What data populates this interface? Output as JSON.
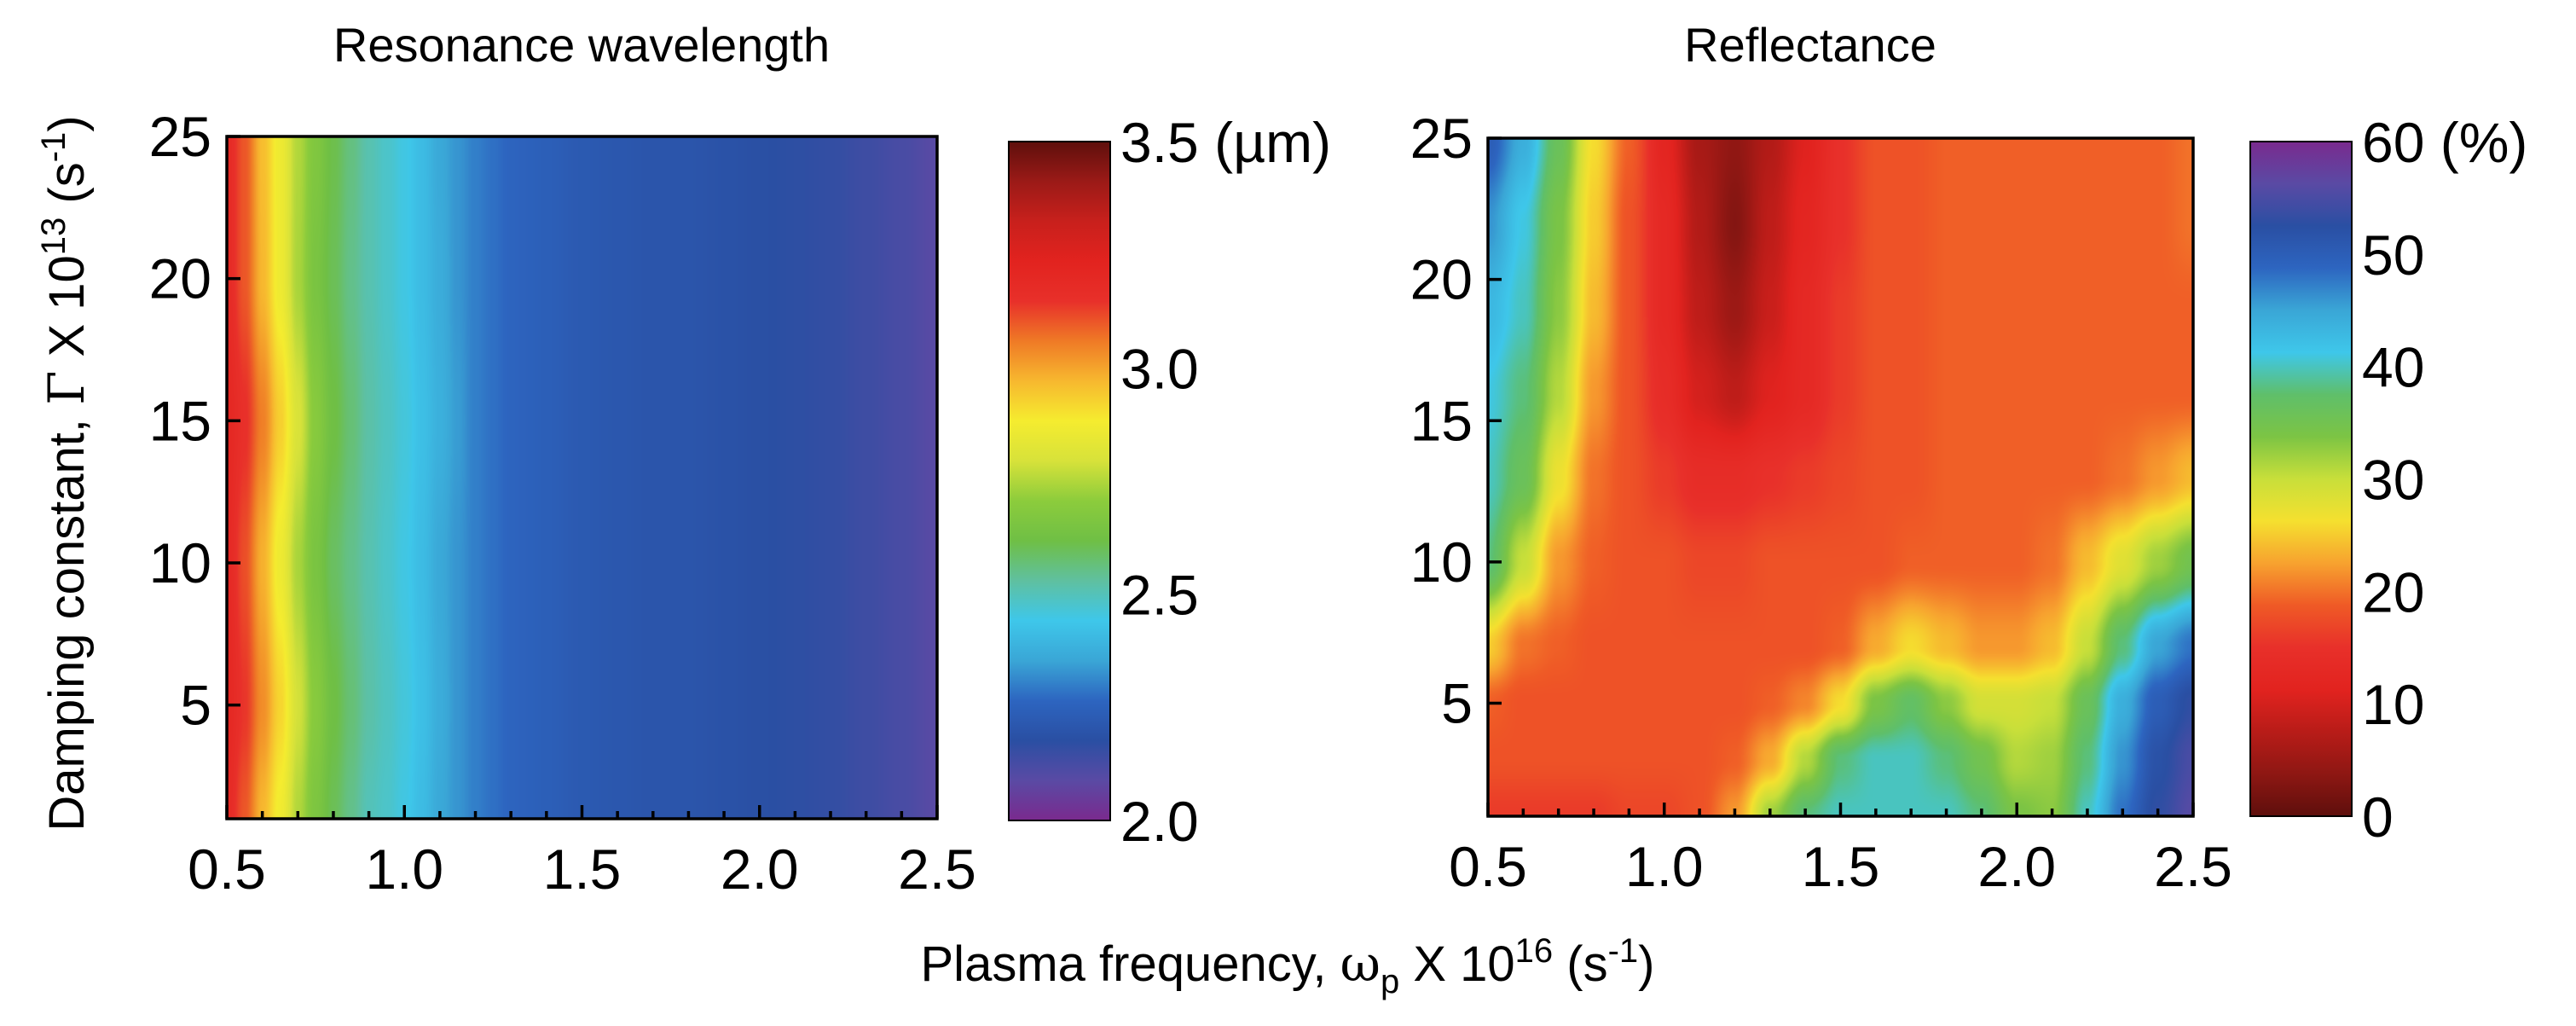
{
  "figure": {
    "xlabel": {
      "prefix": "Plasma frequency, ",
      "symbol": "ω",
      "subscript": "p",
      "middle": " X 10",
      "exponent": "16",
      "unit_open": " (s",
      "unit_exponent": "-1",
      "unit_close": ")"
    },
    "ylabel": {
      "prefix": "Damping constant, ",
      "symbol": "Γ",
      "middle": " X 10",
      "exponent": "13",
      "unit_open": " (s",
      "unit_exponent": "-1",
      "unit_close": ")"
    }
  },
  "chart_data": [
    {
      "type": "heatmap",
      "title": "Resonance wavelength",
      "x_ticks": [
        "0.5",
        "1.0",
        "1.5",
        "2.0",
        "2.5"
      ],
      "y_ticks": [
        "25",
        "20",
        "15",
        "10",
        "5"
      ],
      "xlim": [
        0.5,
        2.5
      ],
      "ylim": [
        1,
        25
      ],
      "colorbar": {
        "range": [
          2.0,
          3.5
        ],
        "ticks": [
          "3.5",
          "3.0",
          "2.5",
          "2.0"
        ],
        "unit": " (µm)",
        "colors": [
          "#7a2a8e",
          "#5a4aa4",
          "#2a4fa3",
          "#2d65c0",
          "#3aa6d6",
          "#3ec7ea",
          "#5fc0a0",
          "#6fbf45",
          "#8ccc3c",
          "#d7e23a",
          "#f5ec2f",
          "#f7b82f",
          "#ef7a26",
          "#e8302a",
          "#e2231f",
          "#c8201c",
          "#9b1a17",
          "#5e0f0c"
        ]
      },
      "samples": {
        "x": [
          0.5,
          0.55,
          0.6,
          0.65,
          0.7,
          0.75,
          0.8,
          0.85,
          0.9,
          0.95,
          1.0,
          1.05,
          1.1,
          1.15,
          1.2,
          1.25,
          1.3,
          1.35,
          1.4,
          1.5,
          1.6,
          1.7,
          1.8,
          1.9,
          2.0,
          2.1,
          2.2,
          2.3,
          2.4,
          2.5
        ],
        "y": [
          1,
          5,
          10,
          15,
          20,
          25
        ],
        "values": [
          [
            3.18,
            3.1,
            2.97,
            2.87,
            2.75,
            2.66,
            2.6,
            2.55,
            2.5,
            2.48,
            2.45,
            2.41,
            2.36,
            2.33,
            2.3,
            2.28,
            2.26,
            2.25,
            2.24,
            2.22,
            2.21,
            2.2,
            2.2,
            2.19,
            2.18,
            2.17,
            2.16,
            2.14,
            2.12,
            2.09
          ],
          [
            3.2,
            3.14,
            3.03,
            2.92,
            2.79,
            2.69,
            2.62,
            2.57,
            2.52,
            2.49,
            2.46,
            2.42,
            2.37,
            2.33,
            2.3,
            2.28,
            2.26,
            2.25,
            2.24,
            2.22,
            2.21,
            2.2,
            2.2,
            2.19,
            2.18,
            2.17,
            2.16,
            2.14,
            2.12,
            2.09
          ],
          [
            3.19,
            3.11,
            2.98,
            2.86,
            2.74,
            2.65,
            2.59,
            2.55,
            2.51,
            2.48,
            2.45,
            2.41,
            2.36,
            2.33,
            2.3,
            2.28,
            2.26,
            2.25,
            2.24,
            2.22,
            2.21,
            2.2,
            2.2,
            2.19,
            2.18,
            2.17,
            2.16,
            2.14,
            2.12,
            2.09
          ],
          [
            3.2,
            3.15,
            3.05,
            2.93,
            2.8,
            2.69,
            2.62,
            2.57,
            2.52,
            2.49,
            2.46,
            2.42,
            2.38,
            2.34,
            2.3,
            2.28,
            2.26,
            2.25,
            2.24,
            2.22,
            2.21,
            2.2,
            2.2,
            2.19,
            2.18,
            2.17,
            2.16,
            2.14,
            2.12,
            2.09
          ],
          [
            3.18,
            3.1,
            2.97,
            2.86,
            2.74,
            2.65,
            2.6,
            2.55,
            2.51,
            2.48,
            2.45,
            2.41,
            2.37,
            2.33,
            2.3,
            2.28,
            2.26,
            2.25,
            2.24,
            2.22,
            2.21,
            2.2,
            2.2,
            2.19,
            2.18,
            2.17,
            2.16,
            2.14,
            2.12,
            2.09
          ],
          [
            3.18,
            3.1,
            2.96,
            2.86,
            2.75,
            2.67,
            2.61,
            2.56,
            2.51,
            2.48,
            2.45,
            2.41,
            2.36,
            2.33,
            2.3,
            2.28,
            2.26,
            2.25,
            2.24,
            2.22,
            2.21,
            2.2,
            2.2,
            2.19,
            2.18,
            2.17,
            2.16,
            2.14,
            2.12,
            2.09
          ]
        ]
      }
    },
    {
      "type": "heatmap",
      "title": "Reflectance",
      "x_ticks": [
        "0.5",
        "1.0",
        "1.5",
        "2.0",
        "2.5"
      ],
      "y_ticks": [
        "25",
        "20",
        "15",
        "10",
        "5"
      ],
      "xlim": [
        0.5,
        2.5
      ],
      "ylim": [
        1,
        25
      ],
      "colorbar": {
        "range": [
          0,
          60
        ],
        "ticks": [
          "60",
          "50",
          "40",
          "30",
          "20",
          "10",
          "0"
        ],
        "unit": " (%)",
        "colors": [
          "#5e0f0c",
          "#8e1713",
          "#b81c18",
          "#e2231f",
          "#e8302a",
          "#ef5a26",
          "#f7a22f",
          "#f5e02f",
          "#c8df3a",
          "#7cc444",
          "#5fbf6a",
          "#3ec7ea",
          "#3aa6d6",
          "#2d65c0",
          "#2a4fa3",
          "#5a4aa4",
          "#7a2a8e"
        ]
      },
      "samples": {
        "x": [
          0.5,
          0.6,
          0.7,
          0.8,
          0.9,
          1.0,
          1.1,
          1.2,
          1.3,
          1.4,
          1.5,
          1.6,
          1.7,
          1.8,
          1.9,
          2.0,
          2.1,
          2.2,
          2.3,
          2.4,
          2.5
        ],
        "y": [
          1,
          3,
          5,
          7,
          10,
          13,
          16,
          19,
          22,
          25
        ],
        "values": [
          [
            16,
            16,
            16,
            16,
            17,
            17,
            18,
            22,
            32,
            38,
            40,
            40,
            40,
            40,
            38,
            34,
            33,
            40,
            48,
            53,
            56
          ],
          [
            18,
            18,
            18,
            18,
            18,
            18,
            18,
            19,
            23,
            31,
            38,
            40,
            40,
            38,
            35,
            31,
            32,
            38,
            46,
            52,
            55
          ],
          [
            19,
            18,
            18,
            18,
            18,
            18,
            18,
            18,
            19,
            21,
            26,
            34,
            37,
            33,
            29,
            29,
            30,
            36,
            44,
            50,
            53
          ],
          [
            25,
            20,
            19,
            18,
            18,
            18,
            18,
            18,
            18,
            18,
            19,
            23,
            26,
            24,
            22,
            22,
            24,
            30,
            38,
            45,
            48
          ],
          [
            38,
            30,
            22,
            19,
            18,
            18,
            17,
            17,
            18,
            18,
            18,
            18,
            19,
            19,
            19,
            19,
            20,
            24,
            28,
            32,
            35
          ],
          [
            40,
            36,
            27,
            20,
            18,
            16,
            14,
            14,
            15,
            16,
            17,
            18,
            18,
            19,
            19,
            19,
            19,
            19,
            20,
            22,
            24
          ],
          [
            41,
            38,
            31,
            22,
            18,
            14,
            10,
            8,
            11,
            13,
            16,
            18,
            18,
            19,
            19,
            19,
            19,
            19,
            19,
            19,
            19
          ],
          [
            43,
            40,
            33,
            24,
            18,
            13,
            8,
            5,
            9,
            13,
            16,
            18,
            18,
            19,
            19,
            19,
            19,
            19,
            19,
            19,
            19
          ],
          [
            46,
            41,
            34,
            25,
            18,
            13,
            7,
            3,
            8,
            12,
            15,
            18,
            18,
            19,
            19,
            19,
            19,
            19,
            19,
            19,
            20
          ],
          [
            50,
            44,
            36,
            26,
            19,
            12,
            6,
            4,
            7,
            11,
            15,
            18,
            18,
            19,
            19,
            19,
            19,
            19,
            19,
            19,
            20
          ]
        ]
      }
    }
  ]
}
